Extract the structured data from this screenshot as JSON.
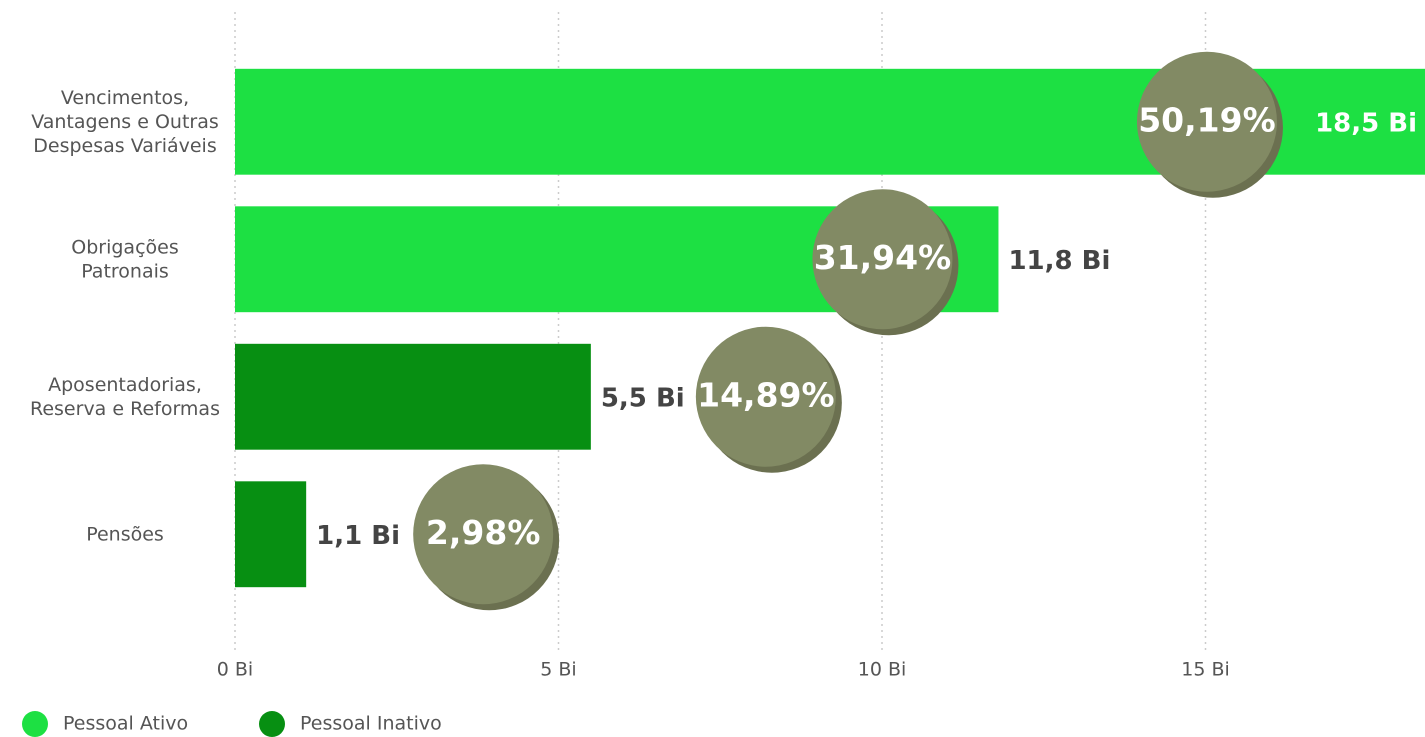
{
  "chart_data": {
    "type": "hbar",
    "categories": [
      "Vencimentos, Vantagens e Outras Despesas Variáveis",
      "Obrigações Patronais",
      "Aposentadorias, Reserva e Reformas",
      "Pensões"
    ],
    "series": [
      {
        "name": "Pessoal Ativo",
        "color": "#1de043",
        "values": [
          18.5,
          11.8,
          null,
          null
        ],
        "value_labels": [
          "18,5 Bi",
          "11,8 Bi",
          null,
          null
        ]
      },
      {
        "name": "Pessoal Inativo",
        "color": "#078f12",
        "values": [
          null,
          null,
          5.5,
          1.1
        ],
        "value_labels": [
          null,
          null,
          "5,5 Bi",
          "1,1 Bi"
        ]
      }
    ],
    "shares": [
      50.19,
      31.94,
      14.89,
      2.98
    ],
    "share_labels": [
      "50,19%",
      "31,94%",
      "14,89%",
      "2,98%"
    ],
    "xlim": [
      0,
      18.4
    ],
    "xticks": [
      {
        "value": 0,
        "label": "0 Bi"
      },
      {
        "value": 5,
        "label": "5 Bi"
      },
      {
        "value": 10,
        "label": "10 Bi"
      },
      {
        "value": 15,
        "label": "15 Bi"
      }
    ],
    "grid": true
  }
}
